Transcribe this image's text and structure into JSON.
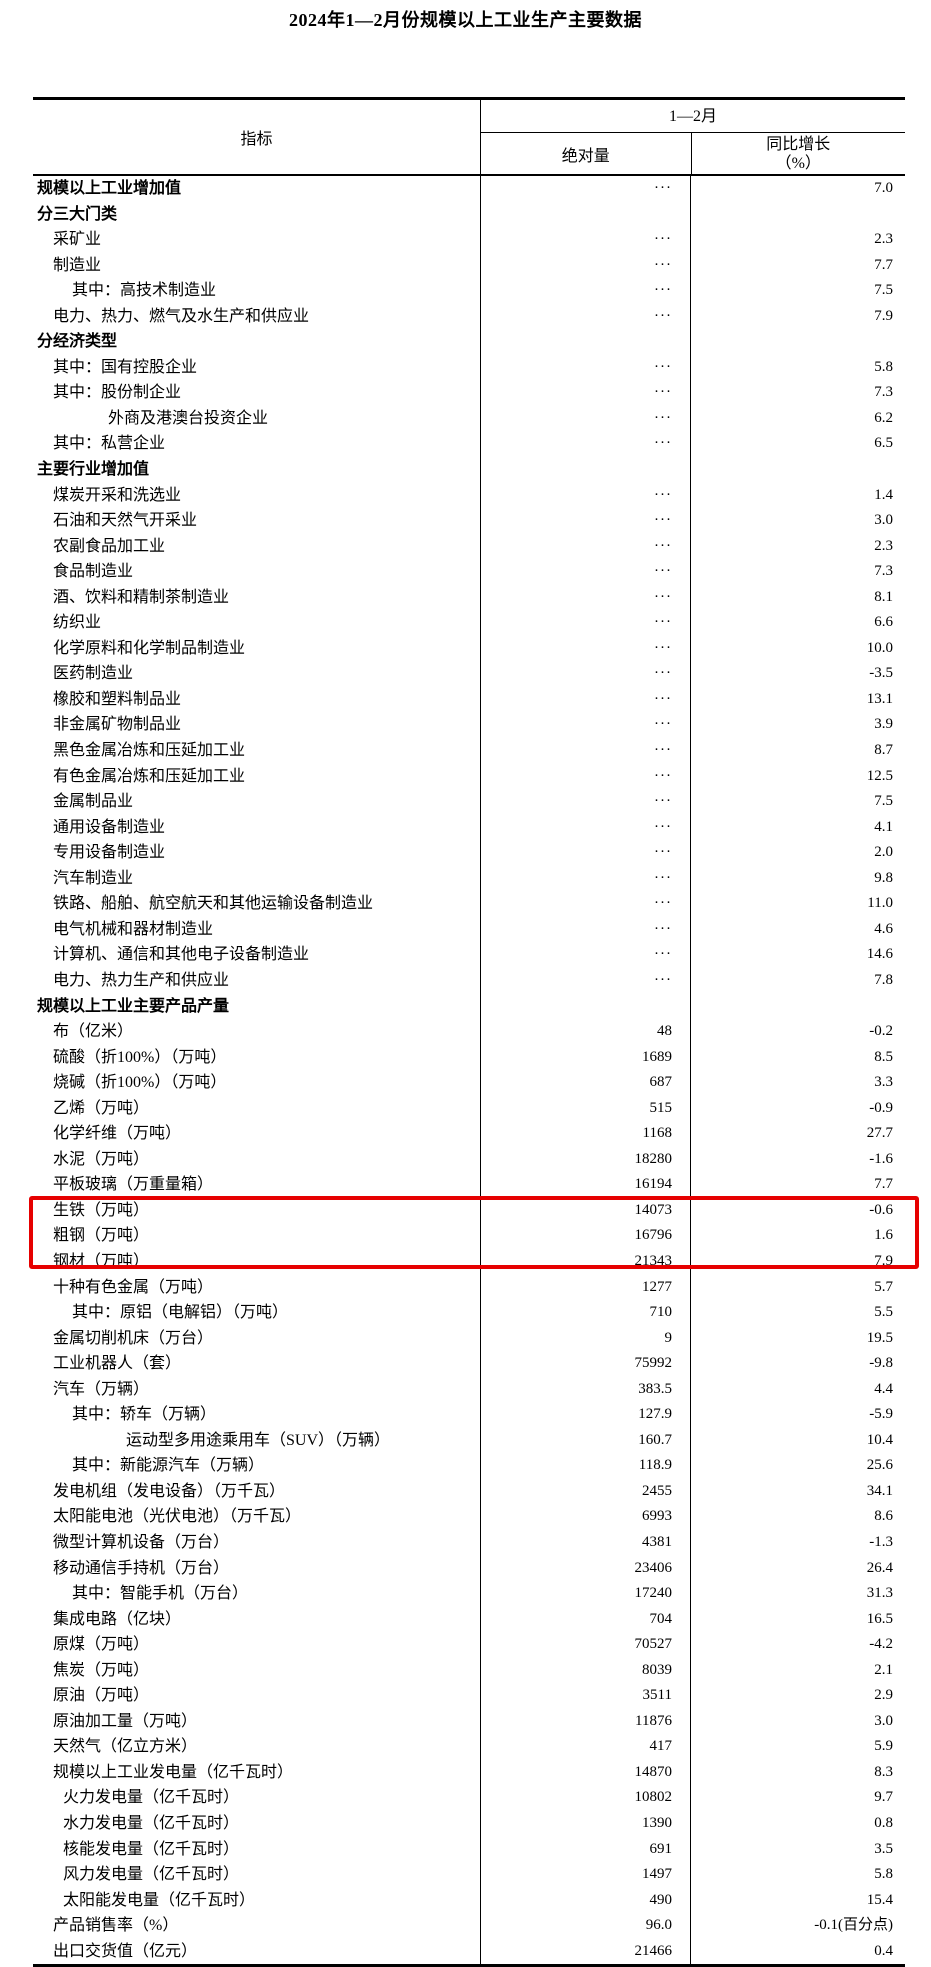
{
  "title": "2024年1—2月份规模以上工业生产主要数据",
  "table": {
    "highlight_color": "#e60000",
    "header": {
      "indicator": "指标",
      "period": "1—2月",
      "col_absolute": "绝对量",
      "col_growth_line1": "同比增长",
      "col_growth_line2": "（%）"
    },
    "rows": [
      {
        "label": "规模以上工业增加值",
        "bold": true,
        "indent": 0,
        "abs": "···",
        "growth": "7.0"
      },
      {
        "label": "分三大门类",
        "bold": true,
        "indent": 0,
        "abs": "",
        "growth": ""
      },
      {
        "label": "采矿业",
        "bold": false,
        "indent": 1,
        "abs": "···",
        "growth": "2.3"
      },
      {
        "label": "制造业",
        "bold": false,
        "indent": 1,
        "abs": "···",
        "growth": "7.7"
      },
      {
        "label": "其中：高技术制造业",
        "bold": false,
        "indent": 3,
        "abs": "···",
        "growth": "7.5"
      },
      {
        "label": "电力、热力、燃气及水生产和供应业",
        "bold": false,
        "indent": 1,
        "abs": "···",
        "growth": "7.9"
      },
      {
        "label": "分经济类型",
        "bold": true,
        "indent": 0,
        "abs": "",
        "growth": ""
      },
      {
        "label": "其中：国有控股企业",
        "bold": false,
        "indent": 1,
        "abs": "···",
        "growth": "5.8"
      },
      {
        "label": "其中：股份制企业",
        "bold": false,
        "indent": 1,
        "abs": "···",
        "growth": "7.3"
      },
      {
        "label": "外商及港澳台投资企业",
        "bold": false,
        "indent": 4,
        "abs": "···",
        "growth": "6.2"
      },
      {
        "label": "其中：私营企业",
        "bold": false,
        "indent": 1,
        "abs": "···",
        "growth": "6.5"
      },
      {
        "label": "主要行业增加值",
        "bold": true,
        "indent": 0,
        "abs": "",
        "growth": ""
      },
      {
        "label": "煤炭开采和洗选业",
        "bold": false,
        "indent": 1,
        "abs": "···",
        "growth": "1.4"
      },
      {
        "label": "石油和天然气开采业",
        "bold": false,
        "indent": 1,
        "abs": "···",
        "growth": "3.0"
      },
      {
        "label": "农副食品加工业",
        "bold": false,
        "indent": 1,
        "abs": "···",
        "growth": "2.3"
      },
      {
        "label": "食品制造业",
        "bold": false,
        "indent": 1,
        "abs": "···",
        "growth": "7.3"
      },
      {
        "label": "酒、饮料和精制茶制造业",
        "bold": false,
        "indent": 1,
        "abs": "···",
        "growth": "8.1"
      },
      {
        "label": "纺织业",
        "bold": false,
        "indent": 1,
        "abs": "···",
        "growth": "6.6"
      },
      {
        "label": "化学原料和化学制品制造业",
        "bold": false,
        "indent": 1,
        "abs": "···",
        "growth": "10.0"
      },
      {
        "label": "医药制造业",
        "bold": false,
        "indent": 1,
        "abs": "···",
        "growth": "-3.5"
      },
      {
        "label": "橡胶和塑料制品业",
        "bold": false,
        "indent": 1,
        "abs": "···",
        "growth": "13.1"
      },
      {
        "label": "非金属矿物制品业",
        "bold": false,
        "indent": 1,
        "abs": "···",
        "growth": "3.9"
      },
      {
        "label": "黑色金属冶炼和压延加工业",
        "bold": false,
        "indent": 1,
        "abs": "···",
        "growth": "8.7"
      },
      {
        "label": "有色金属冶炼和压延加工业",
        "bold": false,
        "indent": 1,
        "abs": "···",
        "growth": "12.5"
      },
      {
        "label": "金属制品业",
        "bold": false,
        "indent": 1,
        "abs": "···",
        "growth": "7.5"
      },
      {
        "label": "通用设备制造业",
        "bold": false,
        "indent": 1,
        "abs": "···",
        "growth": "4.1"
      },
      {
        "label": "专用设备制造业",
        "bold": false,
        "indent": 1,
        "abs": "···",
        "growth": "2.0"
      },
      {
        "label": "汽车制造业",
        "bold": false,
        "indent": 1,
        "abs": "···",
        "growth": "9.8"
      },
      {
        "label": "铁路、船舶、航空航天和其他运输设备制造业",
        "bold": false,
        "indent": 1,
        "abs": "···",
        "growth": "11.0"
      },
      {
        "label": "电气机械和器材制造业",
        "bold": false,
        "indent": 1,
        "abs": "···",
        "growth": "4.6"
      },
      {
        "label": "计算机、通信和其他电子设备制造业",
        "bold": false,
        "indent": 1,
        "abs": "···",
        "growth": "14.6"
      },
      {
        "label": "电力、热力生产和供应业",
        "bold": false,
        "indent": 1,
        "abs": "···",
        "growth": "7.8"
      },
      {
        "label": "规模以上工业主要产品产量",
        "bold": true,
        "indent": 0,
        "abs": "",
        "growth": ""
      },
      {
        "label": "布（亿米）",
        "bold": false,
        "indent": 1,
        "abs": "48",
        "growth": "-0.2"
      },
      {
        "label": "硫酸（折100%）（万吨）",
        "bold": false,
        "indent": 1,
        "abs": "1689",
        "growth": "8.5"
      },
      {
        "label": "烧碱（折100%）（万吨）",
        "bold": false,
        "indent": 1,
        "abs": "687",
        "growth": "3.3"
      },
      {
        "label": "乙烯（万吨）",
        "bold": false,
        "indent": 1,
        "abs": "515",
        "growth": "-0.9"
      },
      {
        "label": "化学纤维（万吨）",
        "bold": false,
        "indent": 1,
        "abs": "1168",
        "growth": "27.7"
      },
      {
        "label": "水泥（万吨）",
        "bold": false,
        "indent": 1,
        "abs": "18280",
        "growth": "-1.6"
      },
      {
        "label": "平板玻璃（万重量箱）",
        "bold": false,
        "indent": 1,
        "abs": "16194",
        "growth": "7.7"
      },
      {
        "label": "生铁（万吨）",
        "bold": false,
        "indent": 1,
        "abs": "14073",
        "growth": "-0.6",
        "highlight": true
      },
      {
        "label": "粗钢（万吨）",
        "bold": false,
        "indent": 1,
        "abs": "16796",
        "growth": "1.6",
        "highlight": true
      },
      {
        "label": "钢材（万吨）",
        "bold": false,
        "indent": 1,
        "abs": "21343",
        "growth": "7.9",
        "highlight": true
      },
      {
        "label": "十种有色金属（万吨）",
        "bold": false,
        "indent": 1,
        "abs": "1277",
        "growth": "5.7"
      },
      {
        "label": "其中：原铝（电解铝）（万吨）",
        "bold": false,
        "indent": 3,
        "abs": "710",
        "growth": "5.5"
      },
      {
        "label": "金属切削机床（万台）",
        "bold": false,
        "indent": 1,
        "abs": "9",
        "growth": "19.5"
      },
      {
        "label": "工业机器人（套）",
        "bold": false,
        "indent": 1,
        "abs": "75992",
        "growth": "-9.8"
      },
      {
        "label": "汽车（万辆）",
        "bold": false,
        "indent": 1,
        "abs": "383.5",
        "growth": "4.4"
      },
      {
        "label": "其中：轿车（万辆）",
        "bold": false,
        "indent": 3,
        "abs": "127.9",
        "growth": "-5.9"
      },
      {
        "label": "运动型多用途乘用车（SUV）（万辆）",
        "bold": false,
        "indent": 5,
        "abs": "160.7",
        "growth": "10.4"
      },
      {
        "label": "其中：新能源汽车（万辆）",
        "bold": false,
        "indent": 3,
        "abs": "118.9",
        "growth": "25.6"
      },
      {
        "label": "发电机组（发电设备）（万千瓦）",
        "bold": false,
        "indent": 1,
        "abs": "2455",
        "growth": "34.1"
      },
      {
        "label": "太阳能电池（光伏电池）（万千瓦）",
        "bold": false,
        "indent": 1,
        "abs": "6993",
        "growth": "8.6"
      },
      {
        "label": "微型计算机设备（万台）",
        "bold": false,
        "indent": 1,
        "abs": "4381",
        "growth": "-1.3"
      },
      {
        "label": "移动通信手持机（万台）",
        "bold": false,
        "indent": 1,
        "abs": "23406",
        "growth": "26.4"
      },
      {
        "label": "其中：智能手机（万台）",
        "bold": false,
        "indent": 3,
        "abs": "17240",
        "growth": "31.3"
      },
      {
        "label": "集成电路（亿块）",
        "bold": false,
        "indent": 1,
        "abs": "704",
        "growth": "16.5"
      },
      {
        "label": "原煤（万吨）",
        "bold": false,
        "indent": 1,
        "abs": "70527",
        "growth": "-4.2"
      },
      {
        "label": "焦炭（万吨）",
        "bold": false,
        "indent": 1,
        "abs": "8039",
        "growth": "2.1"
      },
      {
        "label": "原油（万吨）",
        "bold": false,
        "indent": 1,
        "abs": "3511",
        "growth": "2.9"
      },
      {
        "label": "原油加工量（万吨）",
        "bold": false,
        "indent": 1,
        "abs": "11876",
        "growth": "3.0"
      },
      {
        "label": "天然气（亿立方米）",
        "bold": false,
        "indent": 1,
        "abs": "417",
        "growth": "5.9"
      },
      {
        "label": "规模以上工业发电量（亿千瓦时）",
        "bold": false,
        "indent": 1,
        "abs": "14870",
        "growth": "8.3"
      },
      {
        "label": "火力发电量（亿千瓦时）",
        "bold": false,
        "indent": 2,
        "abs": "10802",
        "growth": "9.7"
      },
      {
        "label": "水力发电量（亿千瓦时）",
        "bold": false,
        "indent": 2,
        "abs": "1390",
        "growth": "0.8"
      },
      {
        "label": "核能发电量（亿千瓦时）",
        "bold": false,
        "indent": 2,
        "abs": "691",
        "growth": "3.5"
      },
      {
        "label": "风力发电量（亿千瓦时）",
        "bold": false,
        "indent": 2,
        "abs": "1497",
        "growth": "5.8"
      },
      {
        "label": "太阳能发电量（亿千瓦时）",
        "bold": false,
        "indent": 2,
        "abs": "490",
        "growth": "15.4"
      },
      {
        "label": "产品销售率（%）",
        "bold": false,
        "indent": 1,
        "abs": "96.0",
        "growth": "-0.1(百分点)"
      },
      {
        "label": "出口交货值（亿元）",
        "bold": false,
        "indent": 1,
        "abs": "21466",
        "growth": "0.4"
      }
    ]
  }
}
